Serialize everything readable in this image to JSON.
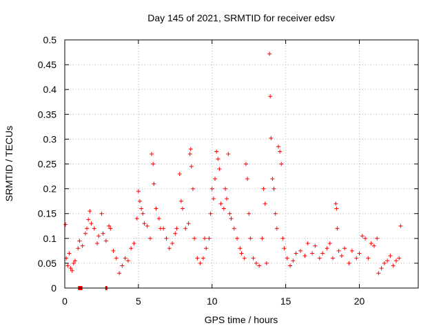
{
  "chart_data": {
    "type": "scatter",
    "title": "Day 145 of 2021, SRMTID for receiver edsv",
    "xlabel": "GPS time / hours",
    "ylabel": "SRMTID / TECUs",
    "xlim": [
      0,
      24
    ],
    "ylim": [
      0,
      0.5
    ],
    "x_ticks": [
      0,
      5,
      10,
      15,
      20
    ],
    "x_tick_labels": [
      "0",
      "5",
      "10",
      "15",
      "20"
    ],
    "y_ticks": [
      0,
      0.05,
      0.1,
      0.15,
      0.2,
      0.25,
      0.3,
      0.35,
      0.4,
      0.45,
      0.5
    ],
    "y_tick_labels": [
      "0",
      "0.05",
      "0.1",
      "0.15",
      "0.2",
      "0.25",
      "0.3",
      "0.35",
      "0.4",
      "0.45",
      "0.5"
    ],
    "grid": true,
    "marker": "+",
    "series": [
      {
        "name": "SRMTID",
        "color": "#ff0000",
        "points": [
          [
            0.05,
            0.128
          ],
          [
            0.1,
            0.06
          ],
          [
            0.2,
            0.045
          ],
          [
            0.3,
            0.07
          ],
          [
            0.4,
            0.04
          ],
          [
            0.5,
            0.035
          ],
          [
            0.6,
            0.05
          ],
          [
            0.7,
            0.055
          ],
          [
            0.9,
            0.08
          ],
          [
            1.0,
            0.095
          ],
          [
            1.2,
            0.085
          ],
          [
            1.4,
            0.11
          ],
          [
            1.5,
            0.12
          ],
          [
            1.6,
            0.138
          ],
          [
            1.7,
            0.155
          ],
          [
            1.8,
            0.13
          ],
          [
            2.0,
            0.12
          ],
          [
            2.2,
            0.09
          ],
          [
            2.3,
            0.105
          ],
          [
            2.5,
            0.15
          ],
          [
            2.6,
            0.11
          ],
          [
            2.8,
            0.095
          ],
          [
            3.0,
            0.125
          ],
          [
            3.1,
            0.12
          ],
          [
            3.3,
            0.075
          ],
          [
            3.5,
            0.06
          ],
          [
            3.7,
            0.03
          ],
          [
            3.9,
            0.045
          ],
          [
            4.1,
            0.06
          ],
          [
            4.3,
            0.055
          ],
          [
            4.5,
            0.08
          ],
          [
            4.7,
            0.09
          ],
          [
            4.9,
            0.14
          ],
          [
            5.0,
            0.195
          ],
          [
            5.1,
            0.175
          ],
          [
            5.2,
            0.16
          ],
          [
            5.3,
            0.15
          ],
          [
            5.4,
            0.13
          ],
          [
            5.6,
            0.125
          ],
          [
            5.8,
            0.1
          ],
          [
            5.9,
            0.27
          ],
          [
            6.0,
            0.25
          ],
          [
            6.05,
            0.21
          ],
          [
            6.2,
            0.16
          ],
          [
            6.4,
            0.14
          ],
          [
            6.5,
            0.12
          ],
          [
            6.7,
            0.12
          ],
          [
            6.9,
            0.1
          ],
          [
            7.1,
            0.08
          ],
          [
            7.3,
            0.09
          ],
          [
            7.5,
            0.11
          ],
          [
            7.6,
            0.12
          ],
          [
            7.8,
            0.23
          ],
          [
            7.9,
            0.175
          ],
          [
            8.0,
            0.16
          ],
          [
            8.2,
            0.12
          ],
          [
            8.4,
            0.13
          ],
          [
            8.5,
            0.27
          ],
          [
            8.55,
            0.28
          ],
          [
            8.6,
            0.245
          ],
          [
            8.7,
            0.2
          ],
          [
            8.8,
            0.1
          ],
          [
            9.0,
            0.06
          ],
          [
            9.2,
            0.05
          ],
          [
            9.4,
            0.06
          ],
          [
            9.5,
            0.1
          ],
          [
            9.6,
            0.08
          ],
          [
            9.8,
            0.1
          ],
          [
            9.9,
            0.15
          ],
          [
            10.0,
            0.2
          ],
          [
            10.1,
            0.18
          ],
          [
            10.2,
            0.22
          ],
          [
            10.3,
            0.275
          ],
          [
            10.4,
            0.26
          ],
          [
            10.5,
            0.24
          ],
          [
            10.6,
            0.17
          ],
          [
            10.8,
            0.16
          ],
          [
            10.9,
            0.2
          ],
          [
            11.0,
            0.18
          ],
          [
            11.1,
            0.27
          ],
          [
            11.2,
            0.15
          ],
          [
            11.3,
            0.14
          ],
          [
            11.5,
            0.12
          ],
          [
            11.7,
            0.1
          ],
          [
            11.9,
            0.08
          ],
          [
            12.0,
            0.07
          ],
          [
            12.2,
            0.06
          ],
          [
            12.3,
            0.25
          ],
          [
            12.4,
            0.22
          ],
          [
            12.5,
            0.15
          ],
          [
            12.6,
            0.1
          ],
          [
            12.8,
            0.06
          ],
          [
            13.0,
            0.05
          ],
          [
            13.2,
            0.045
          ],
          [
            13.4,
            0.1
          ],
          [
            13.5,
            0.2
          ],
          [
            13.6,
            0.17
          ],
          [
            13.7,
            0.05
          ],
          [
            13.9,
            0.472
          ],
          [
            13.95,
            0.386
          ],
          [
            14.0,
            0.302
          ],
          [
            14.1,
            0.22
          ],
          [
            14.2,
            0.2
          ],
          [
            14.3,
            0.15
          ],
          [
            14.4,
            0.12
          ],
          [
            14.5,
            0.285
          ],
          [
            14.6,
            0.275
          ],
          [
            14.7,
            0.25
          ],
          [
            14.8,
            0.1
          ],
          [
            14.9,
            0.08
          ],
          [
            15.1,
            0.06
          ],
          [
            15.3,
            0.045
          ],
          [
            15.5,
            0.055
          ],
          [
            15.7,
            0.07
          ],
          [
            16.0,
            0.075
          ],
          [
            16.3,
            0.065
          ],
          [
            16.5,
            0.09
          ],
          [
            16.8,
            0.07
          ],
          [
            17.0,
            0.085
          ],
          [
            17.3,
            0.06
          ],
          [
            17.5,
            0.07
          ],
          [
            17.8,
            0.08
          ],
          [
            18.0,
            0.09
          ],
          [
            18.2,
            0.06
          ],
          [
            18.4,
            0.17
          ],
          [
            18.45,
            0.16
          ],
          [
            18.5,
            0.12
          ],
          [
            18.6,
            0.075
          ],
          [
            18.8,
            0.065
          ],
          [
            19.0,
            0.08
          ],
          [
            19.3,
            0.05
          ],
          [
            19.5,
            0.075
          ],
          [
            19.8,
            0.06
          ],
          [
            20.0,
            0.07
          ],
          [
            20.2,
            0.105
          ],
          [
            20.4,
            0.1
          ],
          [
            20.6,
            0.06
          ],
          [
            20.8,
            0.09
          ],
          [
            21.0,
            0.085
          ],
          [
            21.2,
            0.1
          ],
          [
            21.3,
            0.03
          ],
          [
            21.5,
            0.04
          ],
          [
            21.7,
            0.05
          ],
          [
            21.9,
            0.055
          ],
          [
            22.1,
            0.065
          ],
          [
            22.3,
            0.045
          ],
          [
            22.5,
            0.055
          ],
          [
            22.7,
            0.06
          ],
          [
            22.8,
            0.125
          ]
        ]
      }
    ],
    "gap_markers": [
      {
        "x_start": 0.9,
        "x_end": 1.2,
        "y": 0
      },
      {
        "x_start": 2.75,
        "x_end": 2.85,
        "y": 0
      }
    ]
  }
}
